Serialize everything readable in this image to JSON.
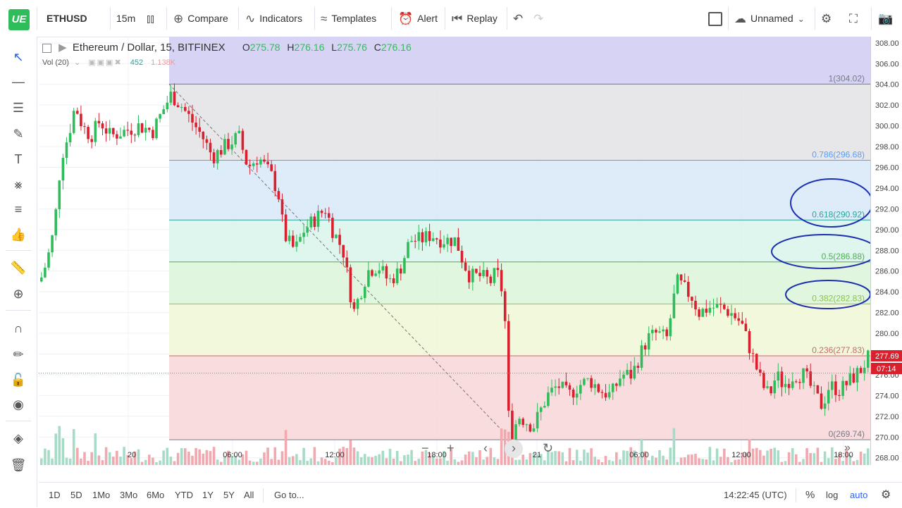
{
  "toolbar": {
    "logo": "UE",
    "symbol": "ETHUSD",
    "interval": "15m",
    "compare": "Compare",
    "indicators": "Indicators",
    "templates": "Templates",
    "alert": "Alert",
    "replay": "Replay",
    "layout_name": "Unnamed"
  },
  "legend": {
    "title": "Ethereum / Dollar, 15, BITFINEX",
    "o_label": "O",
    "o_value": "275.78",
    "h_label": "H",
    "h_value": "276.16",
    "l_label": "L",
    "l_value": "275.76",
    "c_label": "C",
    "c_value": "276.16",
    "vol_label": "Vol (20)",
    "vol_value1": "452",
    "vol_value2": "1.138K"
  },
  "fib_levels": [
    {
      "label": "1(304.02)",
      "price": 304.02,
      "color": "#787b86"
    },
    {
      "label": "0.786(296.68)",
      "price": 296.68,
      "color": "#5b9cf6"
    },
    {
      "label": "0.618(290.92)",
      "price": 290.92,
      "color": "#26a69a"
    },
    {
      "label": "0.5(286.88)",
      "price": 286.88,
      "color": "#4caf50"
    },
    {
      "label": "0.382(282.83)",
      "price": 282.83,
      "color": "#8bc34a"
    },
    {
      "label": "0.236(277.83)",
      "price": 277.83,
      "color": "#c56b6b"
    },
    {
      "label": "0(269.74)",
      "price": 269.74,
      "color": "#787b86"
    }
  ],
  "price_ticks": [
    "308.00",
    "306.00",
    "304.00",
    "302.00",
    "300.00",
    "298.00",
    "296.00",
    "294.00",
    "292.00",
    "290.00",
    "288.00",
    "286.00",
    "284.00",
    "282.00",
    "280.00",
    "278.00",
    "276.00",
    "274.00",
    "272.00",
    "270.00",
    "268.00"
  ],
  "price_min": 267.3,
  "price_max": 308.6,
  "last_price": "277.69",
  "countdown": "07:14",
  "time_ticks": [
    "20",
    "06:00",
    "12:00",
    "18:00",
    "21",
    "06:00",
    "12:00",
    "18:00"
  ],
  "bottom": {
    "ranges": [
      "1D",
      "5D",
      "1Mo",
      "3Mo",
      "6Mo",
      "YTD",
      "1Y",
      "5Y",
      "All"
    ],
    "goto": "Go to...",
    "clock": "14:22:45 (UTC)",
    "percent": "%",
    "log": "log",
    "auto": "auto"
  },
  "colors": {
    "up": "#2fbd5b",
    "down": "#d9202f",
    "accent": "#2962ff"
  }
}
